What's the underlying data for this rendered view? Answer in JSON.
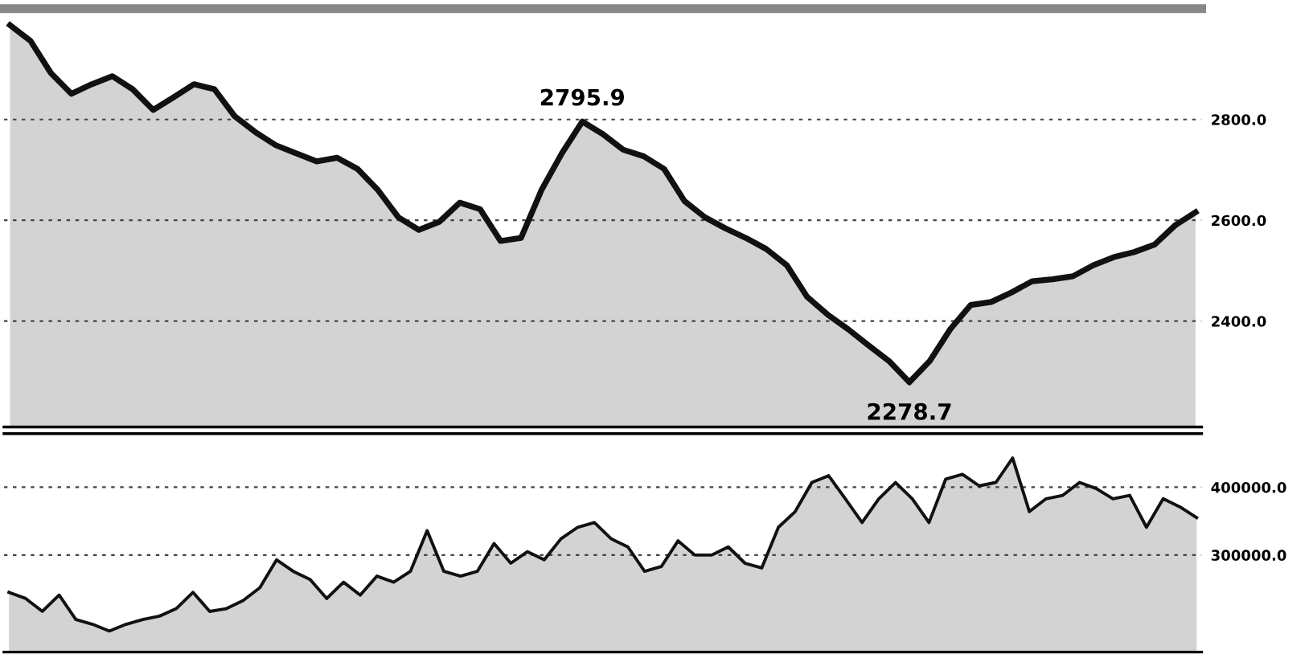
{
  "chart_data": [
    {
      "type": "area",
      "categories": [
        null,
        null,
        null,
        null,
        null,
        null,
        null,
        null,
        null,
        null,
        null,
        null,
        null,
        null,
        null,
        null,
        null,
        null,
        null,
        null,
        null,
        null,
        null,
        null,
        null,
        null,
        null,
        null,
        null,
        null,
        null,
        null,
        null,
        null,
        null,
        null,
        null,
        null,
        null,
        null,
        null,
        null,
        null,
        null,
        null,
        null,
        null,
        null,
        null,
        null,
        null,
        null,
        null,
        null,
        null,
        null,
        null,
        null,
        null
      ],
      "series": [
        {
          "color": "#111111",
          "values": [
            2987,
            2956,
            2892,
            2851,
            2870,
            2886,
            2860,
            2819,
            2844,
            2870,
            2860,
            2806,
            2775,
            2749,
            2733,
            2717,
            2724,
            2702,
            2660,
            2606,
            2581,
            2597,
            2635,
            2622,
            2559,
            2565,
            2660,
            2733,
            2795.9,
            2771,
            2740,
            2727,
            2702,
            2638,
            2606,
            2584,
            2565,
            2543,
            2511,
            2448,
            2413,
            2384,
            2352,
            2321,
            2278.7,
            2321,
            2384,
            2432,
            2438,
            2457,
            2479,
            2483,
            2489,
            2511,
            2527,
            2537,
            2552,
            2590,
            2616
          ]
        }
      ],
      "ylim": [
        2190,
        3020
      ],
      "yticks": [
        {
          "value": 2400,
          "label": "2400.0"
        },
        {
          "value": 2600,
          "label": "2600.0"
        },
        {
          "value": 2800,
          "label": "2800.0"
        }
      ],
      "grid": "y",
      "tick_labels": "y",
      "annotations": [
        {
          "text": "2795.9",
          "y": 2795.9
        },
        {
          "text": "2278.7",
          "y": 2278.7
        }
      ]
    },
    {
      "type": "area",
      "categories": [
        null,
        null,
        null,
        null,
        null,
        null,
        null,
        null,
        null,
        null,
        null,
        null,
        null,
        null,
        null,
        null,
        null,
        null,
        null,
        null,
        null,
        null,
        null,
        null,
        null,
        null,
        null,
        null,
        null,
        null,
        null,
        null,
        null,
        null,
        null,
        null,
        null,
        null,
        null,
        null,
        null,
        null,
        null,
        null,
        null,
        null,
        null,
        null,
        null,
        null,
        null,
        null,
        null,
        null,
        null,
        null,
        null,
        null,
        null,
        null,
        null,
        null,
        null,
        null,
        null,
        null,
        null,
        null,
        null,
        null,
        null,
        null
      ],
      "series": [
        {
          "color": "#111111",
          "values": [
            245000,
            236000,
            217000,
            241000,
            205000,
            198000,
            188000,
            198000,
            205000,
            210000,
            221000,
            245000,
            217000,
            221000,
            233000,
            252000,
            293000,
            276000,
            264000,
            236000,
            260000,
            241000,
            269000,
            260000,
            276000,
            336000,
            276000,
            269000,
            276000,
            317000,
            288000,
            305000,
            293000,
            324000,
            341000,
            348000,
            324000,
            312000,
            276000,
            283000,
            321000,
            300000,
            300000,
            312000,
            288000,
            281000,
            341000,
            364000,
            407000,
            417000,
            383000,
            348000,
            383000,
            407000,
            383000,
            348000,
            412000,
            419000,
            402000,
            407000,
            443000,
            364000,
            383000,
            388000,
            407000,
            398000,
            383000,
            388000,
            341000,
            383000,
            371000,
            355000
          ]
        }
      ],
      "ylim": [
        157000,
        479000
      ],
      "yticks": [
        {
          "value": 300000,
          "label": "300000.0"
        },
        {
          "value": 400000,
          "label": "400000.0"
        }
      ],
      "grid": "y",
      "tick_labels": "y"
    }
  ]
}
